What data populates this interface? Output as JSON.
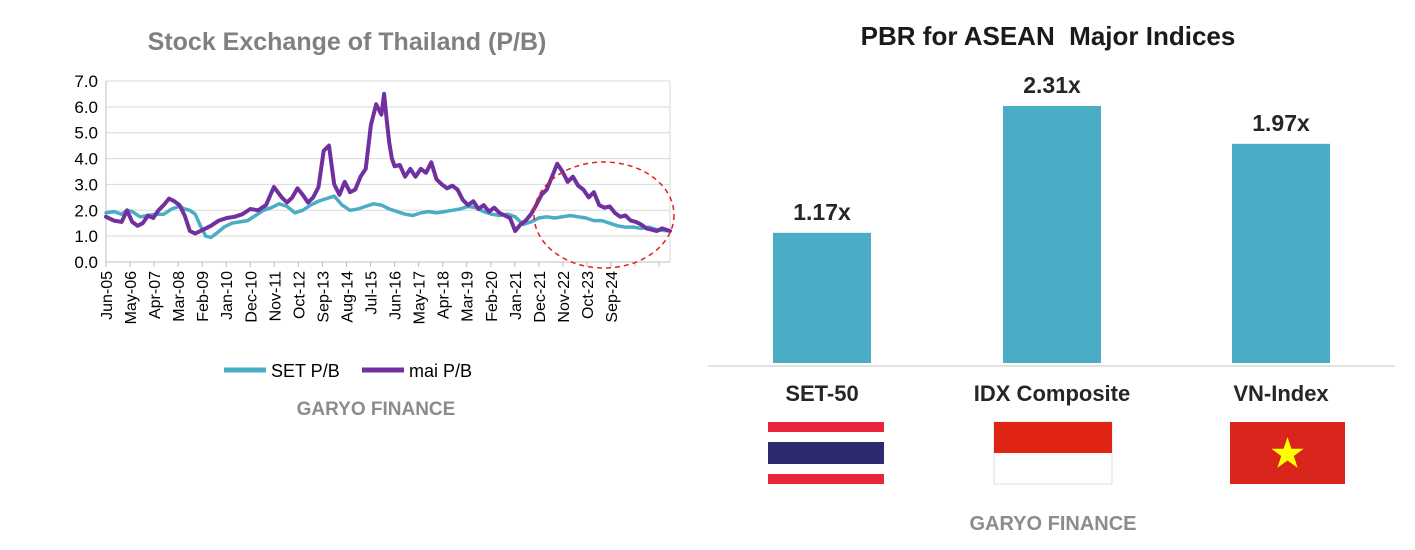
{
  "colors": {
    "set_line": "#4bacc6",
    "mai_line": "#7030a0",
    "bar": "#4bacc6",
    "axis_text": "#000000",
    "title_grey": "#808080",
    "grid": "#d9d9d9",
    "highlight": "#e02020"
  },
  "watermark_left": "GARYO FINANCE",
  "watermark_right": "GARYO FINANCE",
  "flags": [
    {
      "country": "Thailand",
      "icon": "thailand-flag-icon"
    },
    {
      "country": "Indonesia",
      "icon": "indonesia-flag-icon"
    },
    {
      "country": "Vietnam",
      "icon": "vietnam-flag-icon"
    }
  ],
  "chart_data": [
    {
      "type": "line",
      "title": "Stock Exchange of Thailand (P/B)",
      "xlabel": "",
      "ylabel": "",
      "ylim": [
        0,
        7
      ],
      "yticks": [
        "0.0",
        "1.0",
        "2.0",
        "3.0",
        "4.0",
        "5.0",
        "6.0",
        "7.0"
      ],
      "xticks": [
        "Jun-05",
        "May-06",
        "Apr-07",
        "Mar-08",
        "Feb-09",
        "Jan-10",
        "Dec-10",
        "Nov-11",
        "Oct-12",
        "Sep-13",
        "Aug-14",
        "Jul-15",
        "Jun-16",
        "May-17",
        "Apr-18",
        "Mar-19",
        "Feb-20",
        "Jan-21",
        "Dec-21",
        "Nov-22",
        "Oct-23",
        "Sep-24"
      ],
      "grid": true,
      "legend": "bottom",
      "x_unit": "years since Jun-2005",
      "series": [
        {
          "name": "SET P/B",
          "x": [
            0,
            0.3,
            0.6,
            0.8,
            1.0,
            1.3,
            1.6,
            1.9,
            2.2,
            2.5,
            2.8,
            3.0,
            3.2,
            3.4,
            3.6,
            3.8,
            4.0,
            4.2,
            4.5,
            4.8,
            5.1,
            5.4,
            5.7,
            6.0,
            6.3,
            6.6,
            6.9,
            7.2,
            7.5,
            7.8,
            8.1,
            8.4,
            8.7,
            9.0,
            9.3,
            9.6,
            9.9,
            10.2,
            10.5,
            10.8,
            11.1,
            11.4,
            11.7,
            12.0,
            12.3,
            12.6,
            12.9,
            13.2,
            13.5,
            13.8,
            14.1,
            14.4,
            14.7,
            15.0,
            15.3,
            15.6,
            15.9,
            16.2,
            16.5,
            16.8,
            17.1,
            17.4,
            17.7,
            18.0,
            18.3,
            18.6,
            18.9,
            19.2,
            19.5,
            19.8,
            20.1,
            20.4,
            20.7,
            21.0,
            21.5
          ],
          "values": [
            1.9,
            1.95,
            1.85,
            2.0,
            1.95,
            1.75,
            1.8,
            1.85,
            1.85,
            2.05,
            2.15,
            2.05,
            2.0,
            1.85,
            1.4,
            1.0,
            0.95,
            1.1,
            1.35,
            1.5,
            1.55,
            1.6,
            1.8,
            2.0,
            2.1,
            2.25,
            2.15,
            1.9,
            2.0,
            2.2,
            2.35,
            2.45,
            2.55,
            2.2,
            2.0,
            2.05,
            2.15,
            2.25,
            2.2,
            2.05,
            1.95,
            1.85,
            1.8,
            1.9,
            1.95,
            1.9,
            1.95,
            2.0,
            2.05,
            2.15,
            2.1,
            1.95,
            1.85,
            1.8,
            1.85,
            1.75,
            1.45,
            1.55,
            1.7,
            1.75,
            1.7,
            1.75,
            1.8,
            1.75,
            1.7,
            1.6,
            1.6,
            1.5,
            1.4,
            1.35,
            1.35,
            1.3,
            1.35,
            1.25,
            1.2
          ]
        },
        {
          "name": "mai P/B",
          "x": [
            0,
            0.3,
            0.6,
            0.8,
            1.0,
            1.2,
            1.4,
            1.6,
            1.8,
            2.0,
            2.2,
            2.4,
            2.6,
            2.8,
            3.0,
            3.2,
            3.4,
            3.6,
            3.8,
            4.0,
            4.3,
            4.6,
            4.9,
            5.2,
            5.5,
            5.8,
            6.1,
            6.4,
            6.7,
            6.9,
            7.1,
            7.3,
            7.5,
            7.7,
            7.9,
            8.1,
            8.3,
            8.5,
            8.7,
            8.9,
            9.1,
            9.3,
            9.5,
            9.7,
            9.9,
            10.1,
            10.3,
            10.5,
            10.6,
            10.7,
            10.8,
            10.9,
            11.0,
            11.2,
            11.4,
            11.6,
            11.8,
            12.0,
            12.2,
            12.4,
            12.6,
            12.8,
            13.0,
            13.2,
            13.4,
            13.6,
            13.8,
            14.0,
            14.2,
            14.4,
            14.6,
            14.8,
            15.0,
            15.2,
            15.4,
            15.6,
            15.8,
            16.0,
            16.2,
            16.4,
            16.6,
            16.8,
            17.0,
            17.2,
            17.4,
            17.6,
            17.8,
            18.0,
            18.2,
            18.4,
            18.6,
            18.8,
            19.0,
            19.2,
            19.4,
            19.6,
            19.8,
            20.0,
            20.2,
            20.4,
            20.6,
            20.8,
            21.0,
            21.2,
            21.5
          ],
          "values": [
            1.75,
            1.6,
            1.55,
            2.0,
            1.55,
            1.4,
            1.5,
            1.8,
            1.7,
            2.0,
            2.2,
            2.45,
            2.35,
            2.2,
            1.8,
            1.2,
            1.1,
            1.2,
            1.3,
            1.4,
            1.6,
            1.7,
            1.75,
            1.85,
            2.05,
            2.0,
            2.2,
            2.9,
            2.5,
            2.3,
            2.5,
            2.85,
            2.6,
            2.3,
            2.5,
            2.9,
            4.3,
            4.5,
            3.0,
            2.6,
            3.1,
            2.7,
            2.8,
            3.3,
            3.6,
            5.3,
            6.1,
            5.7,
            6.5,
            5.5,
            4.6,
            4.0,
            3.7,
            3.75,
            3.3,
            3.6,
            3.3,
            3.6,
            3.45,
            3.85,
            3.2,
            3.0,
            2.85,
            2.95,
            2.8,
            2.4,
            2.2,
            2.35,
            2.05,
            2.2,
            1.95,
            2.1,
            1.9,
            1.8,
            1.7,
            1.2,
            1.45,
            1.6,
            1.85,
            2.2,
            2.6,
            2.8,
            3.3,
            3.8,
            3.5,
            3.1,
            3.3,
            2.95,
            2.8,
            2.5,
            2.7,
            2.2,
            2.1,
            2.15,
            1.9,
            1.75,
            1.8,
            1.6,
            1.55,
            1.45,
            1.3,
            1.25,
            1.2,
            1.3,
            1.2
          ]
        }
      ]
    },
    {
      "type": "bar",
      "title": "PBR for ASEAN  Major Indices",
      "xlabel": "",
      "ylabel": "",
      "ylim": [
        0,
        2.6
      ],
      "grid": false,
      "categories": [
        "SET-50",
        "IDX Composite",
        "VN-Index"
      ],
      "values": [
        1.17,
        2.31,
        1.97
      ],
      "data_labels": [
        "1.17x",
        "2.31x",
        "1.97x"
      ]
    }
  ]
}
